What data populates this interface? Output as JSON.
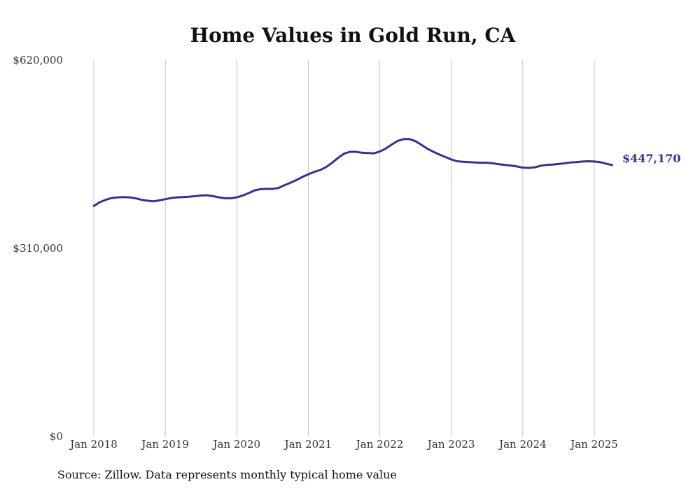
{
  "chart_data": {
    "type": "line",
    "title": "Home Values in Gold Run, CA",
    "source": "Source: Zillow. Data represents monthly typical home value",
    "ylim": [
      0,
      620000
    ],
    "y_ticks": [
      {
        "value": 620000,
        "label": "$620,000"
      },
      {
        "value": 310000,
        "label": "$310,000"
      },
      {
        "value": 0,
        "label": "$0"
      }
    ],
    "x_ticks": [
      {
        "value": "2018-01",
        "label": "Jan 2018"
      },
      {
        "value": "2019-01",
        "label": "Jan 2019"
      },
      {
        "value": "2020-01",
        "label": "Jan 2020"
      },
      {
        "value": "2021-01",
        "label": "Jan 2021"
      },
      {
        "value": "2022-01",
        "label": "Jan 2022"
      },
      {
        "value": "2023-01",
        "label": "Jan 2023"
      },
      {
        "value": "2024-01",
        "label": "Jan 2024"
      },
      {
        "value": "2025-01",
        "label": "Jan 2025"
      }
    ],
    "xlim": [
      "2018-01",
      "2025-04"
    ],
    "grid": "vertical",
    "series": [
      {
        "color": "#3b2f8f",
        "end_label": "$447,170",
        "points": [
          [
            "2018-01",
            380000
          ],
          [
            "2018-02",
            386000
          ],
          [
            "2018-03",
            390000
          ],
          [
            "2018-04",
            393000
          ],
          [
            "2018-05",
            394000
          ],
          [
            "2018-06",
            394500
          ],
          [
            "2018-07",
            394000
          ],
          [
            "2018-08",
            392500
          ],
          [
            "2018-09",
            390000
          ],
          [
            "2018-10",
            388500
          ],
          [
            "2018-11",
            387500
          ],
          [
            "2018-12",
            389000
          ],
          [
            "2019-01",
            391000
          ],
          [
            "2019-02",
            393000
          ],
          [
            "2019-03",
            394000
          ],
          [
            "2019-04",
            394500
          ],
          [
            "2019-05",
            395000
          ],
          [
            "2019-06",
            396000
          ],
          [
            "2019-07",
            397000
          ],
          [
            "2019-08",
            397500
          ],
          [
            "2019-09",
            396000
          ],
          [
            "2019-10",
            394000
          ],
          [
            "2019-11",
            392500
          ],
          [
            "2019-12",
            392500
          ],
          [
            "2020-01",
            394000
          ],
          [
            "2020-02",
            397000
          ],
          [
            "2020-03",
            401000
          ],
          [
            "2020-04",
            405500
          ],
          [
            "2020-05",
            407500
          ],
          [
            "2020-06",
            408000
          ],
          [
            "2020-07",
            408000
          ],
          [
            "2020-08",
            409500
          ],
          [
            "2020-09",
            414000
          ],
          [
            "2020-10",
            418000
          ],
          [
            "2020-11",
            422500
          ],
          [
            "2020-12",
            427500
          ],
          [
            "2021-01",
            432000
          ],
          [
            "2021-02",
            436000
          ],
          [
            "2021-03",
            439000
          ],
          [
            "2021-04",
            444000
          ],
          [
            "2021-05",
            451000
          ],
          [
            "2021-06",
            459000
          ],
          [
            "2021-07",
            466000
          ],
          [
            "2021-08",
            469000
          ],
          [
            "2021-09",
            469000
          ],
          [
            "2021-10",
            467500
          ],
          [
            "2021-11",
            467000
          ],
          [
            "2021-12",
            466500
          ],
          [
            "2022-01",
            469500
          ],
          [
            "2022-02",
            474500
          ],
          [
            "2022-03",
            481000
          ],
          [
            "2022-04",
            487000
          ],
          [
            "2022-05",
            490000
          ],
          [
            "2022-06",
            490000
          ],
          [
            "2022-07",
            486500
          ],
          [
            "2022-08",
            480500
          ],
          [
            "2022-09",
            474000
          ],
          [
            "2022-10",
            469000
          ],
          [
            "2022-11",
            464500
          ],
          [
            "2022-12",
            460500
          ],
          [
            "2023-01",
            456500
          ],
          [
            "2023-02",
            453500
          ],
          [
            "2023-03",
            452500
          ],
          [
            "2023-04",
            452000
          ],
          [
            "2023-05",
            451500
          ],
          [
            "2023-06",
            451000
          ],
          [
            "2023-07",
            451000
          ],
          [
            "2023-08",
            450000
          ],
          [
            "2023-09",
            448500
          ],
          [
            "2023-10",
            447500
          ],
          [
            "2023-11",
            446500
          ],
          [
            "2023-12",
            445000
          ],
          [
            "2024-01",
            443000
          ],
          [
            "2024-02",
            442500
          ],
          [
            "2024-03",
            443500
          ],
          [
            "2024-04",
            446000
          ],
          [
            "2024-05",
            447500
          ],
          [
            "2024-06",
            448000
          ],
          [
            "2024-07",
            449000
          ],
          [
            "2024-08",
            450000
          ],
          [
            "2024-09",
            451500
          ],
          [
            "2024-10",
            452000
          ],
          [
            "2024-11",
            453000
          ],
          [
            "2024-12",
            453500
          ],
          [
            "2025-01",
            453000
          ],
          [
            "2025-02",
            452000
          ],
          [
            "2025-03",
            449500
          ],
          [
            "2025-04",
            447170
          ]
        ]
      }
    ]
  }
}
